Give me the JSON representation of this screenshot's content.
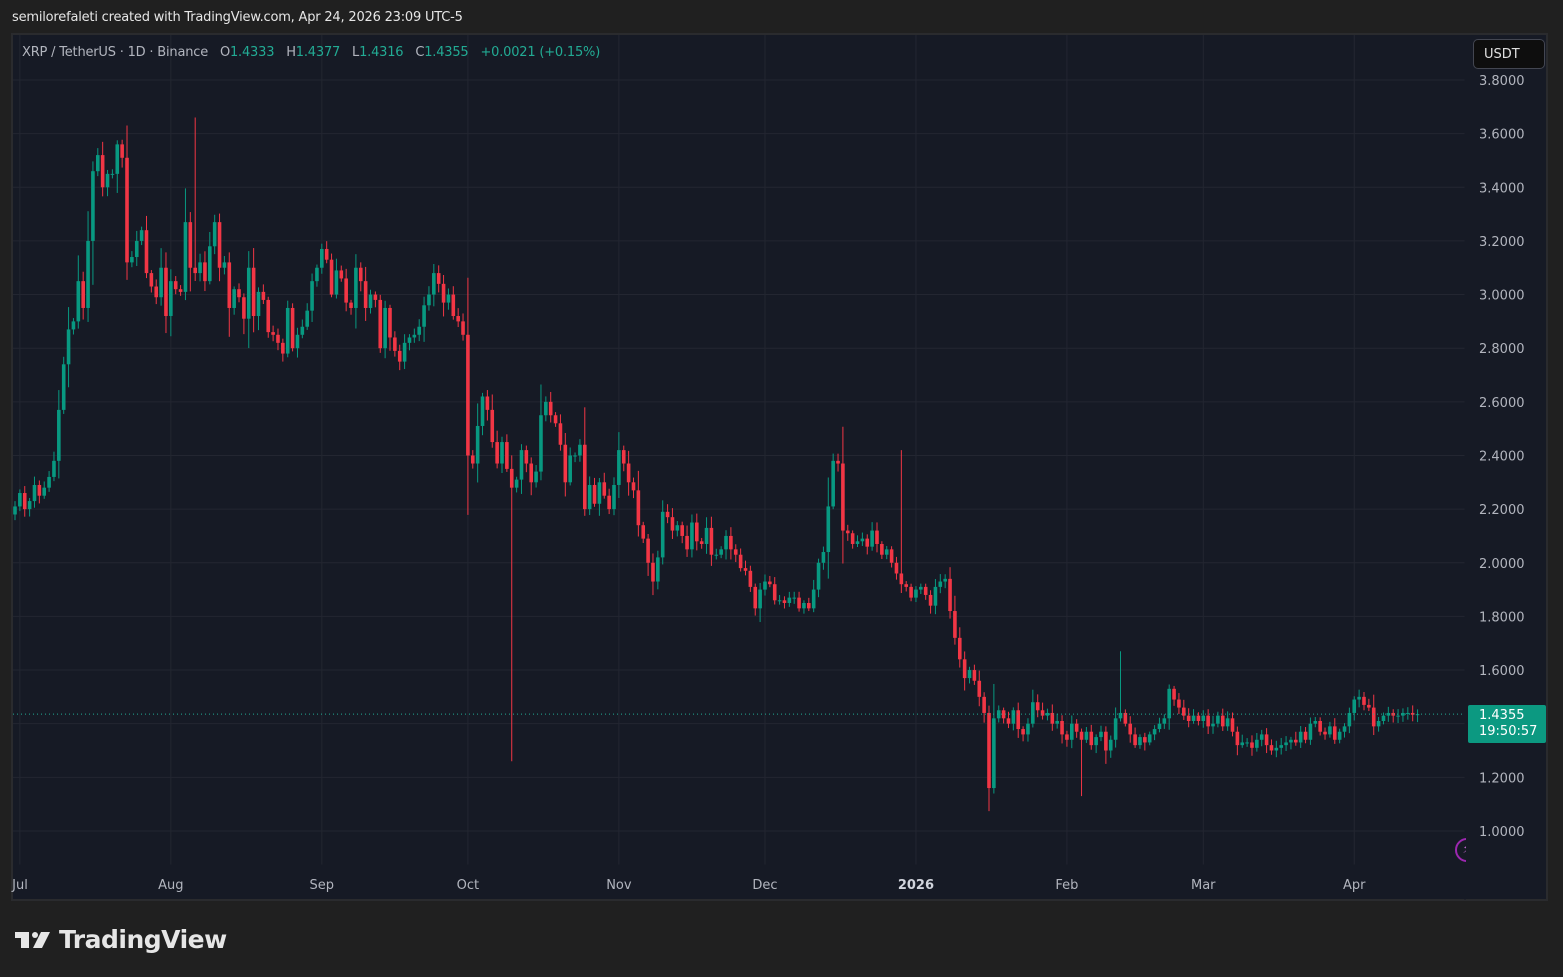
{
  "caption": "semilorefaleti created with TradingView.com, Apr 24, 2026 23:09 UTC-5",
  "legend": {
    "symbol": "XRP / TetherUS · 1D · Binance",
    "open_label": "O",
    "open": "1.4333",
    "high_label": "H",
    "high": "1.4377",
    "low_label": "L",
    "low": "1.4316",
    "close_label": "C",
    "close": "1.4355",
    "change": "+0.0021 (+0.15%)"
  },
  "currency_button": "USDT",
  "price_tag": {
    "price": "1.4355",
    "countdown": "19:50:57"
  },
  "brand": "TradingView",
  "colors": {
    "up": "#089981",
    "down": "#f23645",
    "background": "#161a25",
    "grid": "#232631",
    "price_line": "#22ab94"
  },
  "chart_data": {
    "type": "candlestick",
    "title": "XRP / TetherUS · 1D · Binance",
    "xlabel": "",
    "ylabel": "USDT",
    "ylim": [
      0.93,
      3.85
    ],
    "y_ticks": [
      "3.8000",
      "3.6000",
      "3.4000",
      "3.2000",
      "3.0000",
      "2.8000",
      "2.6000",
      "2.4000",
      "2.2000",
      "2.0000",
      "1.8000",
      "1.6000",
      "1.2000",
      "1.0000"
    ],
    "x_ticks": [
      {
        "label": "Jul",
        "day": 1
      },
      {
        "label": "Aug",
        "day": 32
      },
      {
        "label": "Sep",
        "day": 63
      },
      {
        "label": "Oct",
        "day": 93
      },
      {
        "label": "Nov",
        "day": 124
      },
      {
        "label": "Dec",
        "day": 154
      },
      {
        "label": "2026",
        "day": 185,
        "bold": true
      },
      {
        "label": "Feb",
        "day": 216
      },
      {
        "label": "Mar",
        "day": 244
      },
      {
        "label": "Apr",
        "day": 275
      }
    ],
    "last_price": 1.4355,
    "start_day": 0,
    "grid": true,
    "closes": [
      2.21,
      2.26,
      2.2,
      2.23,
      2.29,
      2.25,
      2.28,
      2.32,
      2.38,
      2.57,
      2.74,
      2.87,
      2.9,
      3.05,
      2.95,
      3.2,
      3.46,
      3.52,
      3.4,
      3.45,
      3.45,
      3.56,
      3.51,
      3.12,
      3.14,
      3.2,
      3.24,
      3.08,
      3.03,
      2.99,
      3.1,
      2.92,
      3.05,
      3.02,
      3.01,
      3.27,
      3.1,
      3.08,
      3.12,
      3.05,
      3.18,
      3.27,
      3.1,
      3.12,
      2.95,
      3.02,
      2.99,
      2.91,
      3.1,
      2.92,
      3.01,
      2.98,
      2.86,
      2.85,
      2.82,
      2.78,
      2.95,
      2.8,
      2.85,
      2.88,
      2.94,
      3.05,
      3.1,
      3.17,
      3.13,
      3.0,
      3.09,
      3.06,
      2.97,
      2.95,
      3.1,
      3.05,
      2.95,
      3.0,
      2.98,
      2.8,
      2.95,
      2.84,
      2.79,
      2.75,
      2.82,
      2.84,
      2.85,
      2.88,
      2.96,
      3.0,
      3.08,
      3.04,
      2.97,
      3.0,
      2.92,
      2.9,
      2.85,
      2.4,
      2.37,
      2.51,
      2.62,
      2.57,
      2.45,
      2.37,
      2.45,
      2.35,
      2.28,
      2.31,
      2.42,
      2.37,
      2.3,
      2.34,
      2.55,
      2.6,
      2.55,
      2.52,
      2.44,
      2.3,
      2.4,
      2.4,
      2.44,
      2.2,
      2.29,
      2.22,
      2.3,
      2.25,
      2.2,
      2.29,
      2.42,
      2.37,
      2.3,
      2.27,
      2.14,
      2.09,
      2.0,
      1.93,
      2.02,
      2.19,
      2.17,
      2.12,
      2.14,
      2.1,
      2.05,
      2.15,
      2.08,
      2.07,
      2.13,
      2.03,
      2.03,
      2.05,
      2.1,
      2.05,
      2.03,
      1.98,
      1.97,
      1.91,
      1.83,
      1.9,
      1.93,
      1.92,
      1.86,
      1.86,
      1.85,
      1.87,
      1.87,
      1.83,
      1.85,
      1.83,
      1.9,
      2.0,
      2.04,
      2.21,
      2.38,
      2.37,
      2.12,
      2.11,
      2.07,
      2.08,
      2.09,
      2.06,
      2.12,
      2.07,
      2.03,
      2.05,
      2.0,
      1.96,
      1.92,
      1.91,
      1.87,
      1.9,
      1.91,
      1.88,
      1.84,
      1.91,
      1.93,
      1.94,
      1.82,
      1.72,
      1.64,
      1.57,
      1.6,
      1.56,
      1.5,
      1.44,
      1.16,
      1.42,
      1.45,
      1.42,
      1.4,
      1.45,
      1.38,
      1.36,
      1.4,
      1.48,
      1.45,
      1.43,
      1.44,
      1.4,
      1.41,
      1.36,
      1.34,
      1.4,
      1.37,
      1.34,
      1.37,
      1.32,
      1.35,
      1.37,
      1.3,
      1.34,
      1.42,
      1.44,
      1.4,
      1.36,
      1.32,
      1.35,
      1.33,
      1.36,
      1.38,
      1.4,
      1.42,
      1.53,
      1.49,
      1.46,
      1.43,
      1.41,
      1.43,
      1.41,
      1.43,
      1.39,
      1.4,
      1.43,
      1.39,
      1.42,
      1.37,
      1.32,
      1.33,
      1.33,
      1.31,
      1.34,
      1.36,
      1.32,
      1.3,
      1.31,
      1.32,
      1.33,
      1.34,
      1.33,
      1.37,
      1.34,
      1.4,
      1.41,
      1.37,
      1.36,
      1.39,
      1.34,
      1.37,
      1.39,
      1.44,
      1.49,
      1.5,
      1.47,
      1.46,
      1.39,
      1.41,
      1.43,
      1.44,
      1.43,
      1.43,
      1.44,
      1.44,
      1.4333,
      1.4355
    ],
    "spikes": [
      {
        "day": 102,
        "low": 1.26
      },
      {
        "day": 219,
        "low": 1.13
      },
      {
        "day": 227,
        "high": 1.67
      },
      {
        "day": 37,
        "high": 3.66
      },
      {
        "day": 182,
        "high": 2.42
      }
    ]
  }
}
